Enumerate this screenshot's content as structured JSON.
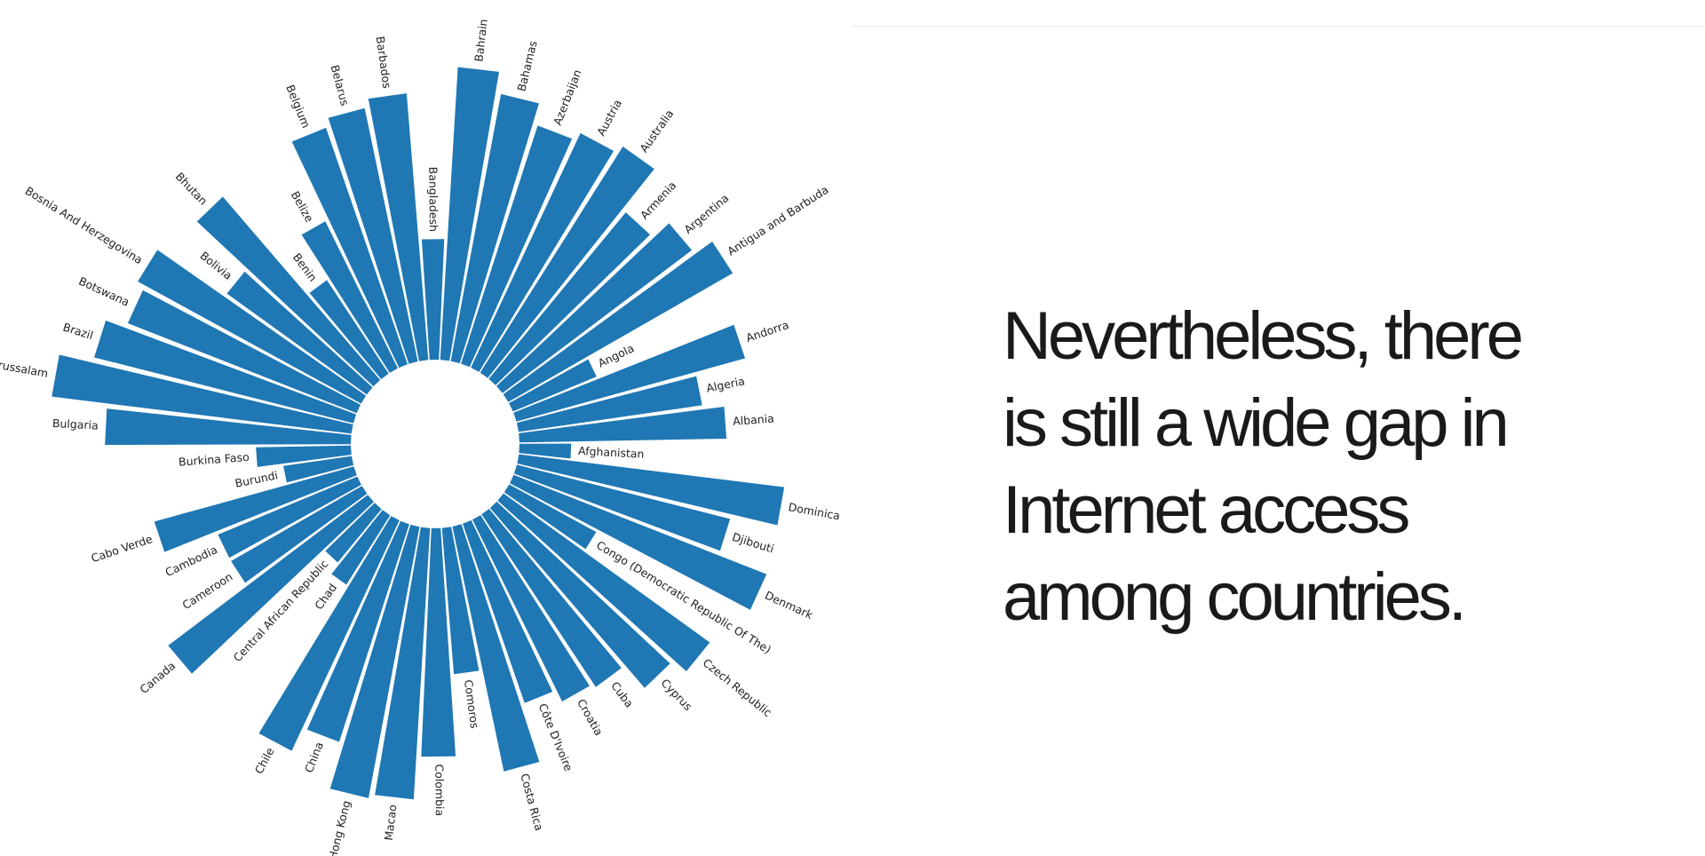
{
  "chart_data": {
    "type": "bar",
    "layout": "radial",
    "color": "#1f77b4",
    "categories": [
      "Afghanistan",
      "Albania",
      "Algeria",
      "Andorra",
      "Angola",
      "Antigua and Barbuda",
      "Argentina",
      "Armenia",
      "Australia",
      "Austria",
      "Azerbaijan",
      "Bahamas",
      "Bahrain",
      "Bangladesh",
      "Barbados",
      "Belarus",
      "Belgium",
      "Belize",
      "Benin",
      "Bhutan",
      "Bolivia",
      "Bosnia And Herzegovina",
      "Botswana",
      "Brazil",
      "Brunei Darussalam",
      "Bulgaria",
      "Burkina Faso",
      "Burundi",
      "Cabo Verde",
      "Cambodia",
      "Cameroon",
      "Canada",
      "Central African Republic",
      "Chad",
      "Chile",
      "China",
      "Hong Kong",
      "Macao",
      "Colombia",
      "Comoros",
      "Costa Rica",
      "Côte D'Ivoire",
      "Croatia",
      "Cuba",
      "Cyprus",
      "Czech Republic",
      "Congo (Democratic Republic Of The)",
      "Denmark",
      "Djibouti",
      "Dominica"
    ],
    "values": [
      12,
      48,
      43,
      55,
      21,
      60,
      55,
      50,
      62,
      60,
      58,
      63,
      68,
      28,
      62,
      60,
      58,
      38,
      26,
      56,
      40,
      59,
      57,
      62,
      70,
      57,
      22,
      16,
      48,
      35,
      35,
      58,
      16,
      19,
      59,
      53,
      64,
      63,
      53,
      34,
      58,
      44,
      47,
      48,
      55,
      59,
      23,
      63,
      51,
      62
    ]
  },
  "caption": {
    "lines": [
      "Nevertheless, there",
      "is still a wide gap in",
      "Internet access",
      "among countries."
    ]
  }
}
